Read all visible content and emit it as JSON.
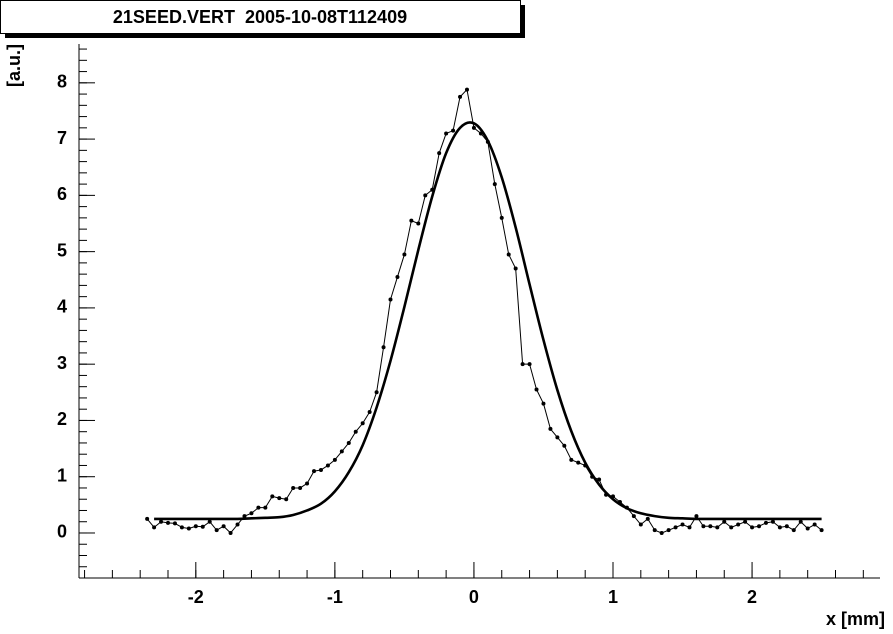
{
  "chart_data": {
    "type": "line",
    "title": "21SEED.VERT  2005-10-08T112409",
    "x_label": "x [mm]",
    "y_label": "[a.u.]",
    "xlim": [
      -2.84,
      2.92
    ],
    "ylim": [
      -0.8,
      8.69
    ],
    "xticks": [
      -2,
      -1,
      0,
      1,
      2
    ],
    "yticks": [
      0,
      1,
      2,
      3,
      4,
      5,
      6,
      7,
      8
    ],
    "series": [
      {
        "color": "#000000",
        "markers": true,
        "x": [
          -2.35,
          -2.3,
          -2.25,
          -2.2,
          -2.15,
          -2.1,
          -2.05,
          -2.0,
          -1.95,
          -1.9,
          -1.85,
          -1.8,
          -1.75,
          -1.7,
          -1.65,
          -1.6,
          -1.55,
          -1.5,
          -1.45,
          -1.4,
          -1.35,
          -1.3,
          -1.25,
          -1.2,
          -1.15,
          -1.1,
          -1.05,
          -1.0,
          -0.95,
          -0.9,
          -0.85,
          -0.8,
          -0.75,
          -0.7,
          -0.65,
          -0.6,
          -0.55,
          -0.5,
          -0.45,
          -0.4,
          -0.35,
          -0.3,
          -0.25,
          -0.2,
          -0.15,
          -0.1,
          -0.05,
          0.0,
          0.05,
          0.1,
          0.15,
          0.2,
          0.25,
          0.3,
          0.35,
          0.4,
          0.45,
          0.5,
          0.55,
          0.6,
          0.65,
          0.7,
          0.75,
          0.8,
          0.85,
          0.9,
          0.95,
          1.0,
          1.05,
          1.1,
          1.15,
          1.2,
          1.25,
          1.3,
          1.35,
          1.4,
          1.45,
          1.5,
          1.55,
          1.6,
          1.65,
          1.7,
          1.75,
          1.8,
          1.85,
          1.9,
          1.95,
          2.0,
          2.05,
          2.1,
          2.15,
          2.2,
          2.25,
          2.3,
          2.35,
          2.4,
          2.45,
          2.5
        ],
        "values": [
          0.25,
          0.1,
          0.2,
          0.18,
          0.17,
          0.1,
          0.08,
          0.12,
          0.11,
          0.2,
          0.05,
          0.12,
          0.0,
          0.15,
          0.3,
          0.35,
          0.45,
          0.45,
          0.65,
          0.62,
          0.6,
          0.8,
          0.8,
          0.88,
          1.1,
          1.12,
          1.2,
          1.3,
          1.45,
          1.6,
          1.8,
          1.95,
          2.15,
          2.5,
          3.3,
          4.15,
          4.55,
          4.95,
          5.55,
          5.5,
          6.0,
          6.1,
          6.75,
          7.1,
          7.15,
          7.75,
          7.88,
          7.2,
          7.1,
          6.95,
          6.2,
          5.6,
          4.95,
          4.7,
          3.0,
          3.0,
          2.55,
          2.3,
          1.85,
          1.7,
          1.55,
          1.3,
          1.25,
          1.2,
          1.0,
          0.95,
          0.68,
          0.65,
          0.55,
          0.45,
          0.3,
          0.15,
          0.25,
          0.05,
          0.0,
          0.05,
          0.1,
          0.15,
          0.1,
          0.3,
          0.12,
          0.12,
          0.1,
          0.2,
          0.1,
          0.15,
          0.2,
          0.1,
          0.12,
          0.18,
          0.2,
          0.1,
          0.12,
          0.05,
          0.2,
          0.08,
          0.15,
          0.05
        ]
      },
      {
        "color": "#000000",
        "markers": false,
        "x": [
          -2.3,
          -2.2,
          -2.1,
          -2.0,
          -1.9,
          -1.8,
          -1.7,
          -1.6,
          -1.5,
          -1.4,
          -1.3,
          -1.2,
          -1.1,
          -1.0,
          -0.9,
          -0.8,
          -0.7,
          -0.6,
          -0.5,
          -0.4,
          -0.3,
          -0.2,
          -0.1,
          0.0,
          0.1,
          0.2,
          0.3,
          0.4,
          0.5,
          0.6,
          0.7,
          0.8,
          0.9,
          1.0,
          1.1,
          1.2,
          1.3,
          1.4,
          1.5,
          1.6,
          1.7,
          1.8,
          1.9,
          2.0,
          2.1,
          2.2,
          2.3,
          2.4,
          2.5
        ],
        "values": [
          0.25,
          0.25,
          0.25,
          0.25,
          0.25,
          0.25,
          0.25,
          0.26,
          0.27,
          0.28,
          0.32,
          0.4,
          0.52,
          0.74,
          1.08,
          1.56,
          2.23,
          3.06,
          4.02,
          5.03,
          5.98,
          6.75,
          7.2,
          7.28,
          6.97,
          6.32,
          5.43,
          4.42,
          3.43,
          2.54,
          1.81,
          1.25,
          0.86,
          0.6,
          0.44,
          0.35,
          0.3,
          0.27,
          0.26,
          0.25,
          0.25,
          0.25,
          0.25,
          0.25,
          0.25,
          0.25,
          0.25,
          0.25,
          0.25
        ]
      }
    ]
  }
}
